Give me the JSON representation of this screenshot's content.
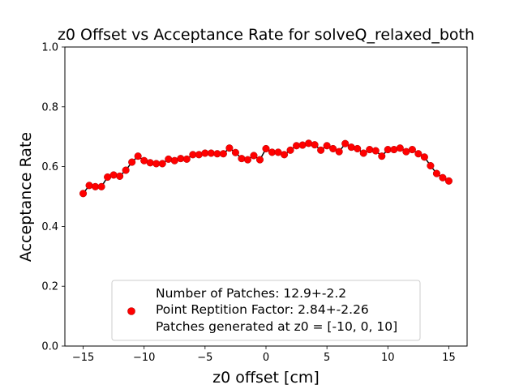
{
  "chart_data": {
    "type": "scatter",
    "title": "z0 Offset vs Acceptance Rate for solveQ_relaxed_both",
    "xlabel": "z0 offset [cm]",
    "ylabel": "Acceptance Rate",
    "xlim": [
      -16.5,
      16.5
    ],
    "ylim": [
      0.0,
      1.0
    ],
    "xticks": [
      -15,
      -10,
      -5,
      0,
      5,
      10,
      15
    ],
    "yticks": [
      0.0,
      0.2,
      0.4,
      0.6,
      0.8,
      1.0
    ],
    "xtick_labels": [
      "−15",
      "−10",
      "−5",
      "0",
      "5",
      "10",
      "15"
    ],
    "ytick_labels": [
      "0.0",
      "0.2",
      "0.4",
      "0.6",
      "0.8",
      "1.0"
    ],
    "grid": false,
    "legend_position": "lower center",
    "legend": [
      "Number of Patches: 12.9+-2.2",
      "Point Reptition Factor: 2.84+-2.26",
      "Patches generated at z0 = [-10, 0, 10]"
    ],
    "colors": {
      "marker": "#ff0000",
      "marker_edge": "#b00000",
      "line": "#000000"
    },
    "series": [
      {
        "x": [
          -15.0,
          -14.5,
          -14.0,
          -13.5,
          -13.0,
          -12.5,
          -12.0,
          -11.5,
          -11.0,
          -10.5,
          -10.0,
          -9.5,
          -9.0,
          -8.5,
          -8.0,
          -7.5,
          -7.0,
          -6.5,
          -6.0,
          -5.5,
          -5.0,
          -4.5,
          -4.0,
          -3.5,
          -3.0,
          -2.5,
          -2.0,
          -1.5,
          -1.0,
          -0.5,
          0.0,
          0.5,
          1.0,
          1.5,
          2.0,
          2.5,
          3.0,
          3.5,
          4.0,
          4.5,
          5.0,
          5.5,
          6.0,
          6.5,
          7.0,
          7.5,
          8.0,
          8.5,
          9.0,
          9.5,
          10.0,
          10.5,
          11.0,
          11.5,
          12.0,
          12.5,
          13.0,
          13.5,
          14.0,
          14.5,
          15.0
        ],
        "y": [
          0.51,
          0.537,
          0.533,
          0.533,
          0.565,
          0.572,
          0.568,
          0.588,
          0.615,
          0.635,
          0.62,
          0.613,
          0.61,
          0.61,
          0.625,
          0.62,
          0.627,
          0.625,
          0.64,
          0.64,
          0.645,
          0.645,
          0.643,
          0.643,
          0.662,
          0.647,
          0.627,
          0.623,
          0.637,
          0.623,
          0.66,
          0.648,
          0.648,
          0.64,
          0.655,
          0.67,
          0.672,
          0.678,
          0.673,
          0.655,
          0.67,
          0.66,
          0.65,
          0.677,
          0.665,
          0.66,
          0.645,
          0.657,
          0.653,
          0.635,
          0.657,
          0.657,
          0.662,
          0.65,
          0.657,
          0.643,
          0.632,
          0.603,
          0.577,
          0.563,
          0.552
        ]
      }
    ]
  }
}
